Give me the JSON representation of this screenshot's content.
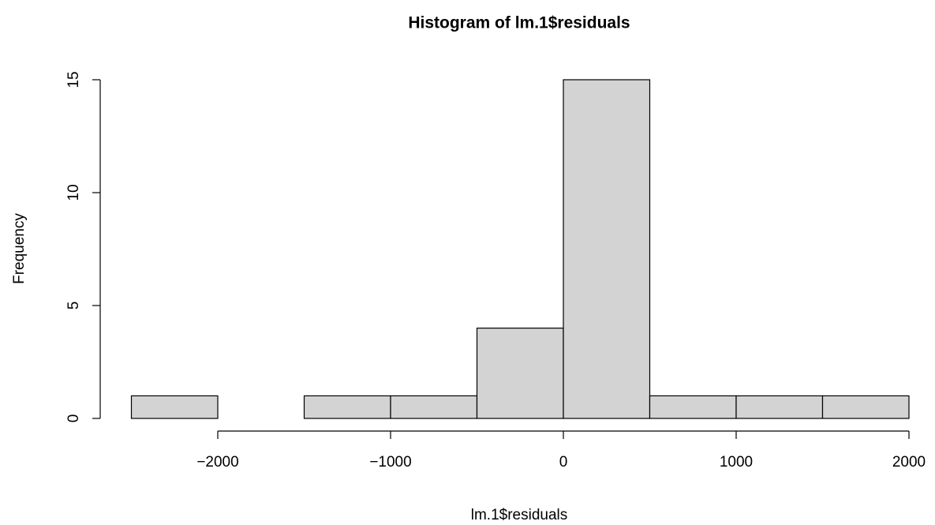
{
  "chart_data": {
    "type": "histogram",
    "title": "Histogram of lm.1$residuals",
    "x_label": "lm.1$residuals",
    "y_label": "Frequency",
    "bins": [
      -2500,
      -2000,
      -1500,
      -1000,
      -500,
      0,
      500,
      1000,
      1500,
      2000
    ],
    "values": [
      1,
      0,
      1,
      1,
      4,
      15,
      1,
      1,
      1
    ],
    "color": "#d3d3d3",
    "xlim": [
      -2500,
      2000
    ],
    "xticks": [
      {
        "value": -2000,
        "label": "−2000"
      },
      {
        "value": -1000,
        "label": "−1000"
      },
      0,
      1000,
      2000
    ],
    "ylim": [
      0,
      15
    ],
    "yticks": [
      0,
      5,
      10,
      15
    ]
  }
}
